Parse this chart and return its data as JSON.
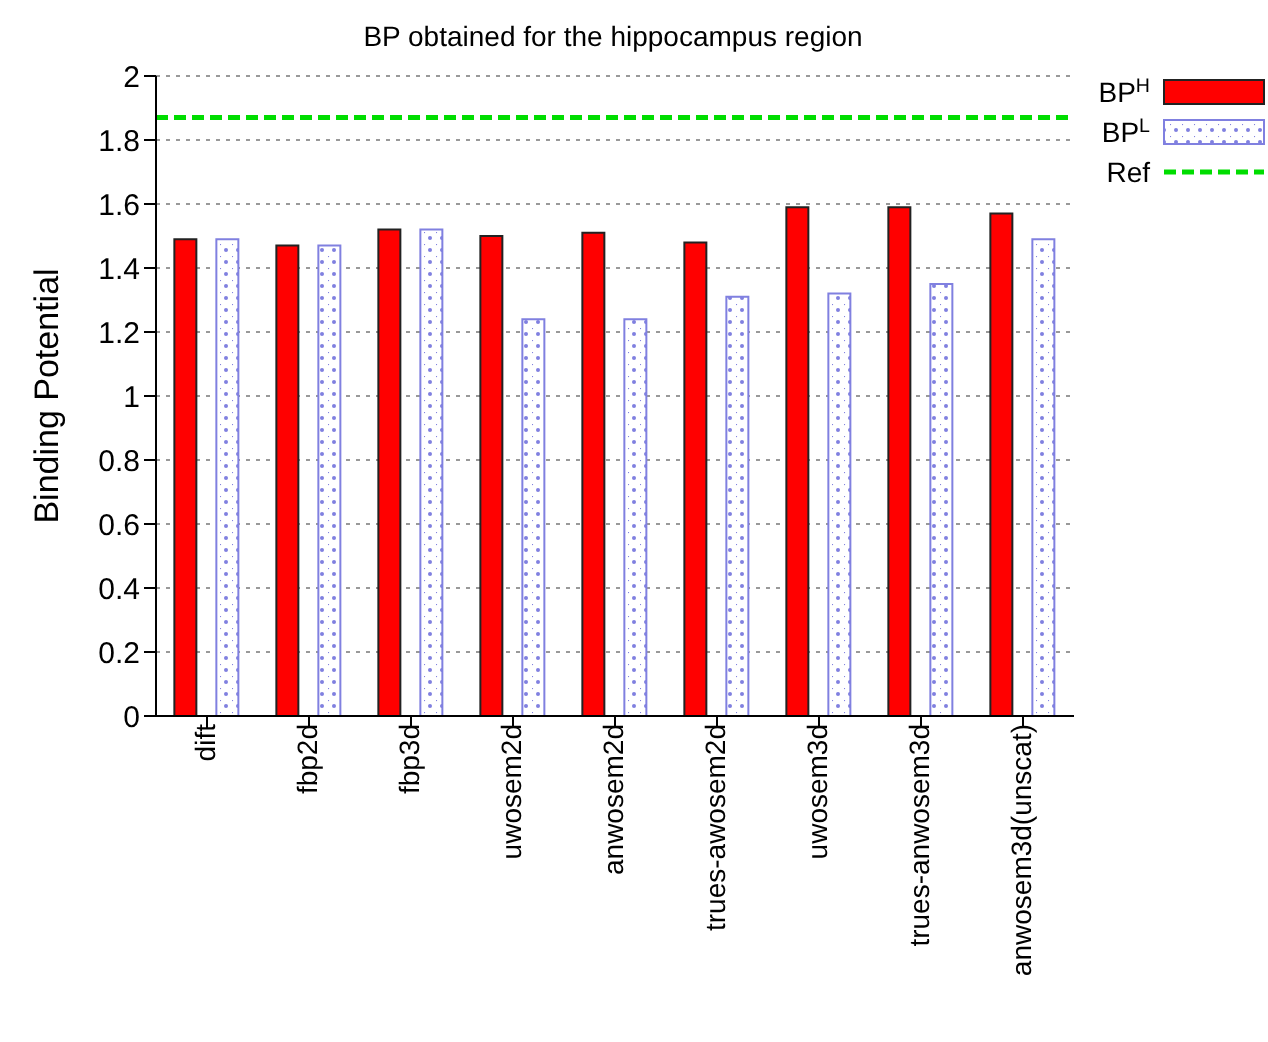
{
  "chart_data": {
    "type": "bar",
    "title": "BP obtained for the hippocampus region",
    "ylabel": "Binding Potential",
    "categories": [
      "dift",
      "fbp2d",
      "fbp3d",
      "uwosem2d",
      "anwosem2d",
      "trues-awosem2d",
      "uwosem3d",
      "trues-anwosem3d",
      "anwosem3d(unscat)"
    ],
    "series": [
      {
        "name": "BP$^{H}$",
        "color": "#ff0000",
        "values": [
          1.49,
          1.47,
          1.52,
          1.5,
          1.51,
          1.48,
          1.59,
          1.59,
          1.57
        ]
      },
      {
        "name": "BP$^{L}$",
        "color": "#8080e0",
        "values": [
          1.49,
          1.47,
          1.52,
          1.24,
          1.24,
          1.31,
          1.32,
          1.35,
          1.49
        ]
      }
    ],
    "ylim": [
      0,
      2
    ],
    "yticks": [
      0,
      0.2,
      0.4,
      0.6,
      0.8,
      1,
      1.2,
      1.4,
      1.6,
      1.8,
      2
    ],
    "ref_lines": [
      {
        "axis": "y",
        "value": 1.87,
        "label": "Ref",
        "color": "#00dd00",
        "line_style": "dashed"
      }
    ],
    "grid": "y",
    "legend": "top right"
  }
}
